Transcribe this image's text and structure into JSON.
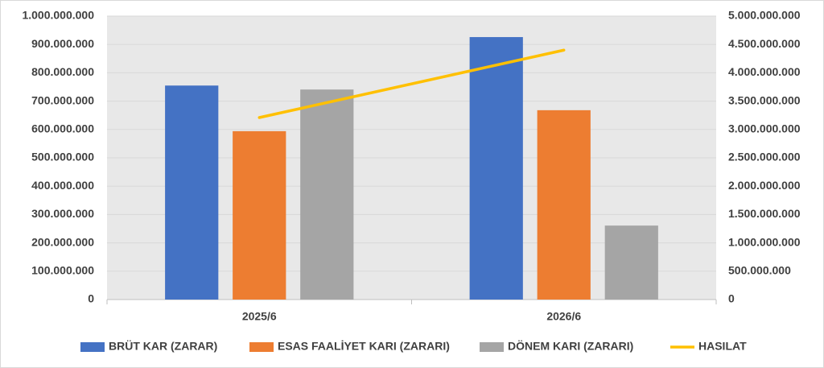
{
  "chart_data": {
    "type": "bar",
    "categories": [
      "2025/6",
      "2026/6"
    ],
    "series": [
      {
        "name": "BRÜT KAR (ZARAR)",
        "color": "#4472c4",
        "values": [
          755000000,
          926000000
        ]
      },
      {
        "name": "ESAS FAALİYET KARI (ZARARI)",
        "color": "#ed7d31",
        "values": [
          594000000,
          668000000
        ]
      },
      {
        "name": "DÖNEM KARI (ZARARI)",
        "color": "#a5a5a5",
        "values": [
          741000000,
          261000000
        ]
      },
      {
        "name": "HASILAT",
        "color": "#ffc000",
        "type": "line",
        "axis": "y2",
        "values": [
          3210000000,
          4400000000
        ]
      }
    ],
    "ylim": [
      0,
      1000000000
    ],
    "yticks": [
      0,
      {
        "value": 100000000,
        "label": "100.000.000"
      },
      {
        "value": 200000000,
        "label": "200.000.000"
      },
      {
        "value": 300000000,
        "label": "300.000.000"
      },
      {
        "value": 400000000,
        "label": "400.000.000"
      },
      {
        "value": 500000000,
        "label": "500.000.000"
      },
      {
        "value": 600000000,
        "label": "600.000.000"
      },
      {
        "value": 700000000,
        "label": "700.000.000"
      },
      {
        "value": 800000000,
        "label": "800.000.000"
      },
      {
        "value": 900000000,
        "label": "900.000.000"
      },
      {
        "value": 1000000000,
        "label": "1.000.000.000"
      }
    ],
    "y2lim": [
      0,
      5000000000
    ],
    "y2ticks": [
      0,
      {
        "value": 500000000,
        "label": "500.000.000"
      },
      {
        "value": 1000000000,
        "label": "1.000.000.000"
      },
      {
        "value": 1500000000,
        "label": "1.500.000.000"
      },
      {
        "value": 2000000000,
        "label": "2.000.000.000"
      },
      {
        "value": 2500000000,
        "label": "2.500.000.000"
      },
      {
        "value": 3000000000,
        "label": "3.000.000.000"
      },
      {
        "value": 3500000000,
        "label": "3.500.000.000"
      },
      {
        "value": 4000000000,
        "label": "4.000.000.000"
      },
      {
        "value": 4500000000,
        "label": "4.500.000.000"
      },
      {
        "value": 5000000000,
        "label": "5.000.000.000"
      }
    ],
    "grid": true,
    "legend": "bottom"
  }
}
